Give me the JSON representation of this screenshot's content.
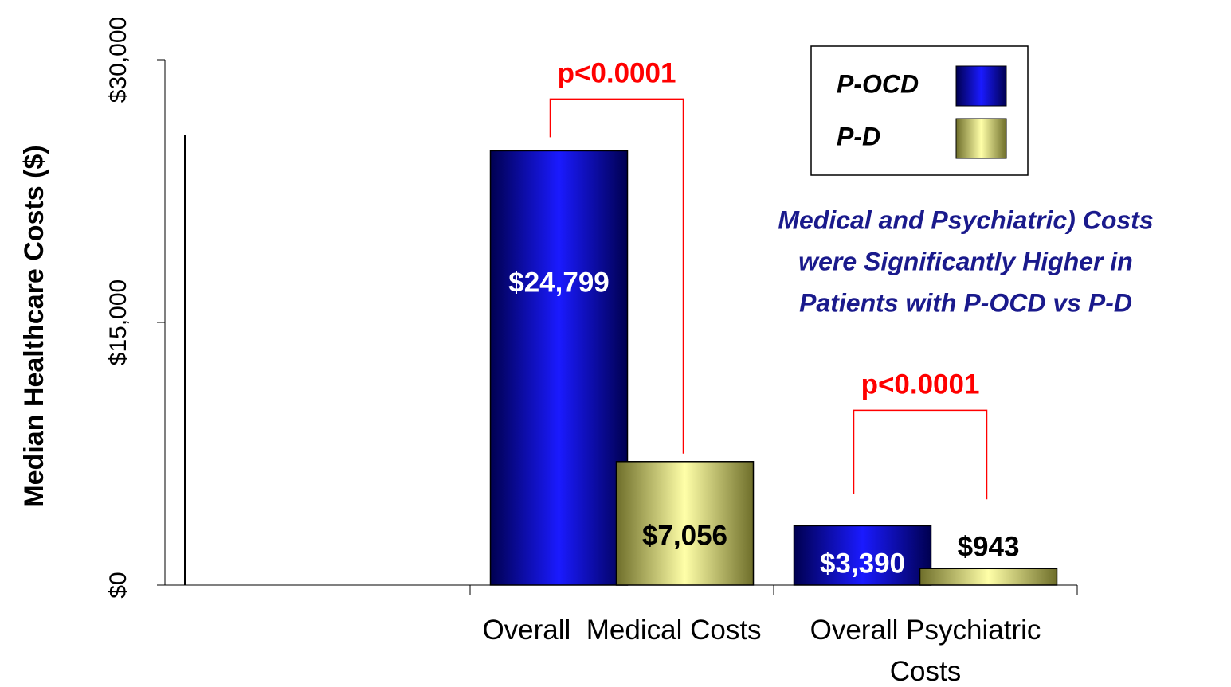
{
  "chart_data": {
    "type": "bar",
    "y_label": "Median Healthcare Costs ($)",
    "categories": [
      "Overall  Medical Costs",
      "Overall Psychiatric Costs"
    ],
    "series": [
      {
        "name": "P-OCD",
        "color": "#0000cc",
        "values": [
          24799,
          3390
        ],
        "value_labels": [
          "$24,799",
          "$3,390"
        ]
      },
      {
        "name": "P-D",
        "color": "#e6e68a",
        "values": [
          7056,
          943
        ],
        "value_labels": [
          "$7,056",
          "$943"
        ]
      }
    ],
    "ylim": [
      0,
      30000
    ],
    "yticks": [
      {
        "value": 0,
        "label": "$0"
      },
      {
        "value": 15000,
        "label": "$15,000"
      },
      {
        "value": 30000,
        "label": "$30,000"
      }
    ],
    "significance": [
      "p<0.0001",
      "p<0.0001"
    ],
    "note": [
      "Medical and Psychiatric) Costs",
      "were Significantly Higher in",
      "Patients with P-OCD vs P-D"
    ],
    "legend": "upper right"
  }
}
